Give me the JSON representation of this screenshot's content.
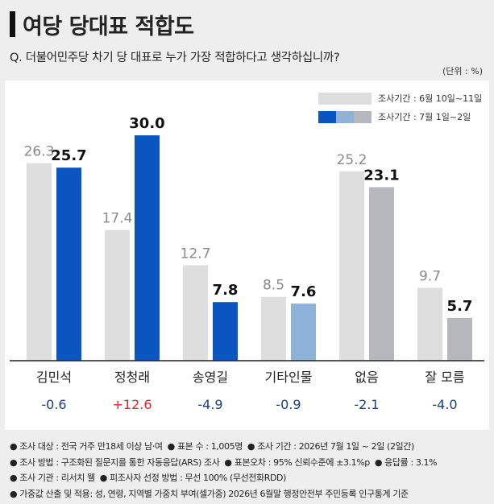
{
  "header": {
    "title": "여당 당대표 적합도"
  },
  "question": "Q. 더불어민주당 차기 당 대표로 누가 가장 적합하다고 생각하십니까?",
  "unit": "(단위 : %)",
  "legend": {
    "prev": "조사기간 : 6월 10일~11일",
    "curr": "조사기간 : 7월 1일~2일"
  },
  "colors": {
    "prev": "#dedede",
    "blue": "#0a55bf",
    "lightblue": "#8fb3d8",
    "gray": "#b6b8be",
    "neg": "#1a3f7a",
    "pos": "#e0242b"
  },
  "chart_data": {
    "type": "bar",
    "categories": [
      "김민석",
      "정청래",
      "송영길",
      "기타인물",
      "없음",
      "잘 모름"
    ],
    "series": [
      {
        "name": "조사기간 : 6월 10일~11일",
        "values": [
          26.3,
          17.4,
          12.7,
          8.5,
          25.2,
          9.7
        ]
      },
      {
        "name": "조사기간 : 7월 1일~2일",
        "values": [
          25.7,
          30.0,
          7.8,
          7.6,
          23.1,
          5.7
        ]
      }
    ],
    "value_labels_prev": [
      "26.3",
      "17.4",
      "12.7",
      "8.5",
      "25.2",
      "9.7"
    ],
    "value_labels_curr": [
      "25.7",
      "30.0",
      "7.8",
      "7.6",
      "23.1",
      "5.7"
    ],
    "curr_colors": [
      "#0a55bf",
      "#0a55bf",
      "#0a55bf",
      "#8fb3d8",
      "#b6b8be",
      "#b6b8be"
    ],
    "changes": [
      "-0.6",
      "+12.6",
      "-4.9",
      "-0.9",
      "-2.1",
      "-4.0"
    ],
    "change_colors": [
      "#1a3f7a",
      "#e0242b",
      "#1a3f7a",
      "#1a3f7a",
      "#1a3f7a",
      "#1a3f7a"
    ],
    "ylim": [
      0,
      30
    ]
  },
  "footnotes": {
    "line1": [
      "● 조사 대상 : 전국 거주 만18세 이상 남·여",
      "● 표본 수 : 1,005명",
      "● 조사 기간 : 2026년 7월 1일 ~ 2일 (2일간)"
    ],
    "line2": [
      "● 조사 방법 : 구조화된 질문지를 통한 자동응답(ARS) 조사",
      "● 표본오차 : 95% 신뢰수준에 ±3.1%p",
      "● 응답률 : 3.1%"
    ],
    "line3": [
      "● 조사 기관 : 리서치 웰",
      "● 피조사자 선정 방법 : 무선 100% (무선전화RDD)"
    ],
    "line4": [
      "● 가중값 산출 및 적용: 성, 연령, 지역별 가중치 부여(셀가중) 2026년 6월말 행정안전부 주민등록 인구통계 기준"
    ]
  }
}
